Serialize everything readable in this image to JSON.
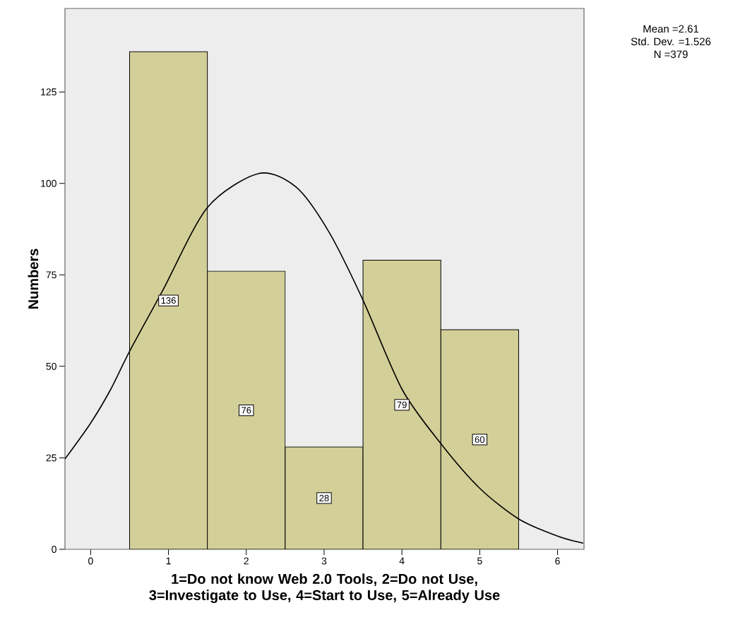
{
  "chart_data": {
    "type": "histogram",
    "xlabel": "1=Do not know Web 2.0 Tools, 2=Do not Use, 3=Investigate to Use, 4=Start to Use, 5=Already Use",
    "ylabel": "Numbers",
    "annotations": [
      "Mean =2.61",
      "Std. Dev. =1.526",
      "N =379"
    ],
    "series": [
      {
        "bins": [
          0.5,
          1.5,
          2.5,
          3.5,
          4.5,
          5.5
        ],
        "values": [
          136,
          76,
          28,
          79,
          60
        ],
        "value_labels": [
          "136",
          "76",
          "28",
          "79",
          "60"
        ],
        "color": "#d3cf98"
      },
      {
        "type": "line",
        "color": "#000000",
        "x": [
          -0.33,
          0,
          0.26,
          0.5,
          0.93,
          1.5,
          2.16,
          2.64,
          3.06,
          3.5,
          4,
          4.5,
          5,
          5.5,
          6,
          6.33
        ],
        "values": [
          24.7,
          34.5,
          43.8,
          54.1,
          70.9,
          93.4,
          102.7,
          99.0,
          86.8,
          68.1,
          43.8,
          28.9,
          16.7,
          8.3,
          3.6,
          1.7
        ]
      }
    ],
    "xlim": [
      -0.33,
      6.34
    ],
    "ylim": [
      0,
      147.8
    ],
    "xticks": [
      0,
      1,
      2,
      3,
      4,
      5,
      6
    ],
    "yticks": [
      0,
      25,
      50,
      75,
      100,
      125
    ]
  }
}
